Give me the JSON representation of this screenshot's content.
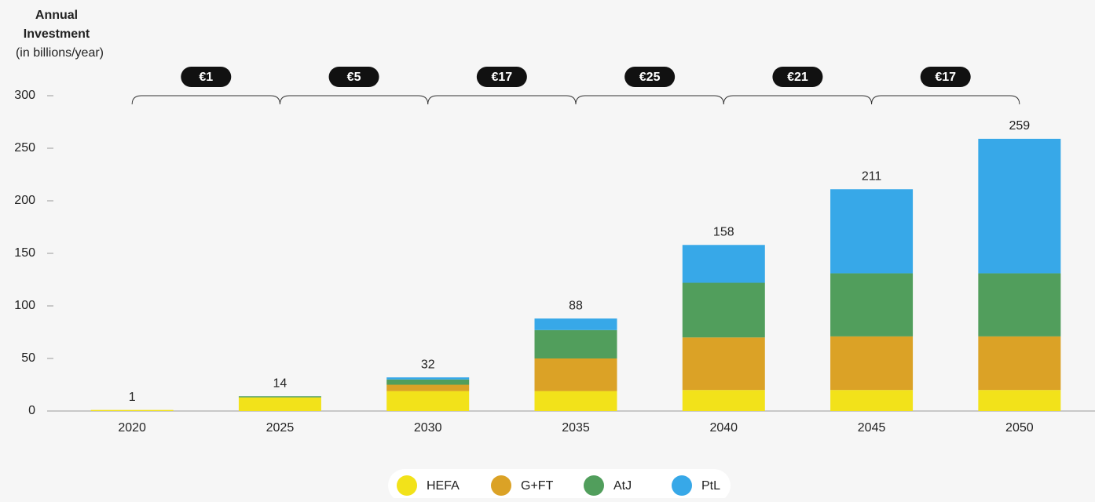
{
  "chart_data": {
    "type": "stacked_bar",
    "y_axis_title": [
      "Annual",
      "Investment",
      "(in billions/year)"
    ],
    "categories": [
      "2020",
      "2025",
      "2030",
      "2035",
      "2040",
      "2045",
      "2050"
    ],
    "series": [
      {
        "name": "HEFA",
        "color": "#f2e21a",
        "values": [
          1,
          13,
          19,
          19,
          20,
          20,
          20
        ]
      },
      {
        "name": "G+FT",
        "color": "#dba226",
        "values": [
          0,
          0,
          6,
          31,
          50,
          51,
          51
        ]
      },
      {
        "name": "AtJ",
        "color": "#519e5c",
        "values": [
          0,
          1,
          5,
          27,
          52,
          60,
          60
        ]
      },
      {
        "name": "PtL",
        "color": "#37a8e8",
        "values": [
          0,
          0,
          2,
          11,
          36,
          80,
          128
        ]
      }
    ],
    "totals": [
      1,
      14,
      32,
      88,
      158,
      211,
      259
    ],
    "period_labels": [
      "€1",
      "€5",
      "€17",
      "€25",
      "€21",
      "€17"
    ],
    "ylim": [
      0,
      300
    ],
    "yticks": [
      0,
      50,
      100,
      150,
      200,
      250,
      300
    ],
    "grid": false
  }
}
